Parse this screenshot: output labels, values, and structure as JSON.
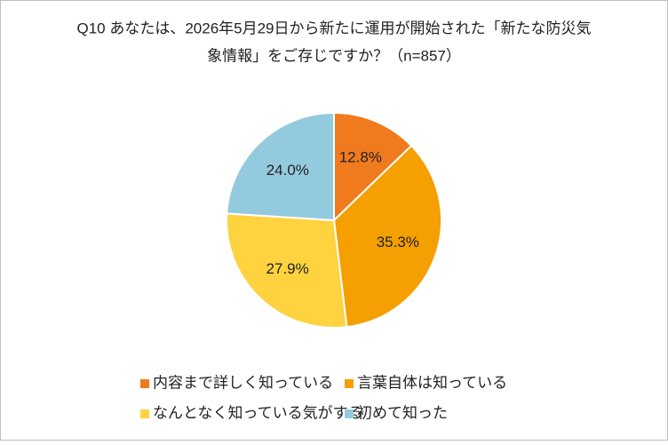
{
  "chart_data": {
    "type": "pie",
    "title": [
      "Q10 あなたは、2026年5月29日から新たに運用が開始された「新たな防災気",
      "象情報」をご存じですか？（n=857）"
    ],
    "categories": [
      "内容まで詳しく知っている",
      "言葉自体は知っている",
      "なんとなく知っている気がする",
      "初めて知った"
    ],
    "values": [
      12.8,
      35.3,
      27.9,
      24.0
    ],
    "value_labels": [
      "12.8%",
      "35.3%",
      "27.9%",
      "24.0%"
    ],
    "colors": [
      "#f07a1e",
      "#f59f00",
      "#ffd23f",
      "#94cadd"
    ],
    "legend": "bottom"
  }
}
